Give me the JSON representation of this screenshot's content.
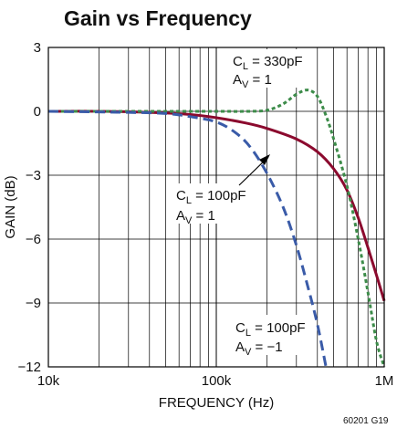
{
  "chart_data": {
    "type": "line",
    "title": "Gain vs Frequency",
    "xlabel": "FREQUENCY (Hz)",
    "ylabel": "GAIN (dB)",
    "x_scale": "log",
    "xlim": [
      10000,
      1000000
    ],
    "ylim": [
      -12,
      3
    ],
    "x_ticks": [
      {
        "value": 10000,
        "label": "10k"
      },
      {
        "value": 100000,
        "label": "100k"
      },
      {
        "value": 1000000,
        "label": "1M"
      }
    ],
    "y_ticks": [
      {
        "value": 3,
        "label": "3"
      },
      {
        "value": 0,
        "label": "0"
      },
      {
        "value": -3,
        "label": "−3"
      },
      {
        "value": -6,
        "label": "−6"
      },
      {
        "value": -9,
        "label": "−9"
      },
      {
        "value": -12,
        "label": "−12"
      }
    ],
    "grid": true,
    "series": [
      {
        "key": "cl100_av1",
        "color": "#8b0a2e",
        "dash": "solid",
        "points": [
          [
            10000,
            0
          ],
          [
            20000,
            0
          ],
          [
            40000,
            -0.05
          ],
          [
            70000,
            -0.15
          ],
          [
            100000,
            -0.3
          ],
          [
            150000,
            -0.55
          ],
          [
            200000,
            -0.8
          ],
          [
            300000,
            -1.3
          ],
          [
            400000,
            -1.9
          ],
          [
            500000,
            -2.7
          ],
          [
            600000,
            -3.7
          ],
          [
            700000,
            -5.0
          ],
          [
            800000,
            -6.4
          ],
          [
            900000,
            -7.7
          ],
          [
            1000000,
            -8.9
          ]
        ]
      },
      {
        "key": "cl330_av1",
        "color": "#3d8c4a",
        "dash": "dotted",
        "points": [
          [
            10000,
            0
          ],
          [
            50000,
            0
          ],
          [
            100000,
            0
          ],
          [
            150000,
            0
          ],
          [
            200000,
            0.05
          ],
          [
            250000,
            0.35
          ],
          [
            300000,
            0.8
          ],
          [
            350000,
            1.0
          ],
          [
            400000,
            0.7
          ],
          [
            450000,
            -0.2
          ],
          [
            500000,
            -1.3
          ],
          [
            600000,
            -3.5
          ],
          [
            700000,
            -6.0
          ],
          [
            800000,
            -8.5
          ],
          [
            900000,
            -10.8
          ],
          [
            1000000,
            -12
          ]
        ]
      },
      {
        "key": "cl100_av_neg1",
        "color": "#3a5ba8",
        "dash": "dashed",
        "points": [
          [
            10000,
            0
          ],
          [
            30000,
            -0.05
          ],
          [
            50000,
            -0.1
          ],
          [
            70000,
            -0.25
          ],
          [
            100000,
            -0.5
          ],
          [
            130000,
            -1.0
          ],
          [
            160000,
            -1.7
          ],
          [
            200000,
            -2.9
          ],
          [
            250000,
            -4.5
          ],
          [
            300000,
            -6.3
          ],
          [
            350000,
            -8.2
          ],
          [
            400000,
            -10.0
          ],
          [
            450000,
            -12
          ]
        ]
      }
    ],
    "annotations": [
      {
        "cl_main": "C",
        "cl_sub": "L",
        "cl_val": " = 330pF",
        "av_main": "A",
        "av_sub": "V",
        "av_val": " = 1"
      },
      {
        "cl_main": "C",
        "cl_sub": "L",
        "cl_val": " = 100pF",
        "av_main": "A",
        "av_sub": "V",
        "av_val": " = 1"
      },
      {
        "cl_main": "C",
        "cl_sub": "L",
        "cl_val": " = 100pF",
        "av_main": "A",
        "av_sub": "V",
        "av_val": " = −1"
      }
    ],
    "figure_id": "60201 G19"
  }
}
